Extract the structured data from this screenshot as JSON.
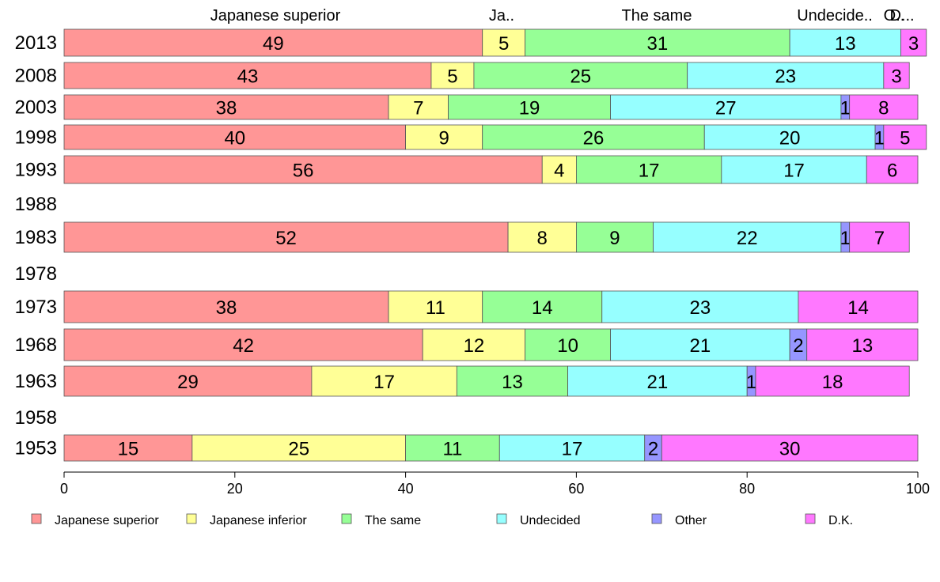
{
  "chart_data": {
    "type": "bar",
    "orientation": "horizontal",
    "stacked": true,
    "title": "",
    "xlabel": "",
    "ylabel": "",
    "xlim": [
      0,
      100
    ],
    "x_ticks": [
      "0",
      "20",
      "40",
      "60",
      "80",
      "100"
    ],
    "grid": false,
    "legend_position": "bottom",
    "categories": [
      "2013",
      "2008",
      "2003",
      "1998",
      "1993",
      "1988",
      "1983",
      "1978",
      "1973",
      "1968",
      "1963",
      "1958",
      "1953"
    ],
    "top_labels": [
      "Japanese superior",
      "Ja..",
      "The same",
      "Undecide..",
      "O..",
      "D..."
    ],
    "series": [
      {
        "name": "Japanese superior",
        "color": "#ff9696",
        "values": [
          49,
          43,
          38,
          40,
          56,
          null,
          52,
          null,
          38,
          42,
          29,
          null,
          15
        ]
      },
      {
        "name": "Japanese inferior",
        "color": "#ffff96",
        "values": [
          5,
          5,
          7,
          9,
          4,
          null,
          8,
          null,
          11,
          12,
          17,
          null,
          25
        ]
      },
      {
        "name": "The same",
        "color": "#96ff96",
        "values": [
          31,
          25,
          19,
          26,
          17,
          null,
          9,
          null,
          14,
          10,
          13,
          null,
          11
        ]
      },
      {
        "name": "Undecided",
        "color": "#96ffff",
        "values": [
          13,
          23,
          27,
          20,
          17,
          null,
          22,
          null,
          23,
          21,
          21,
          null,
          17
        ]
      },
      {
        "name": "Other",
        "color": "#9696ff",
        "values": [
          0,
          0,
          1,
          1,
          0,
          null,
          1,
          null,
          0,
          2,
          1,
          null,
          2
        ]
      },
      {
        "name": "D.K.",
        "color": "#ff78ff",
        "values": [
          3,
          3,
          8,
          5,
          6,
          null,
          7,
          null,
          14,
          13,
          18,
          null,
          30
        ]
      }
    ]
  }
}
